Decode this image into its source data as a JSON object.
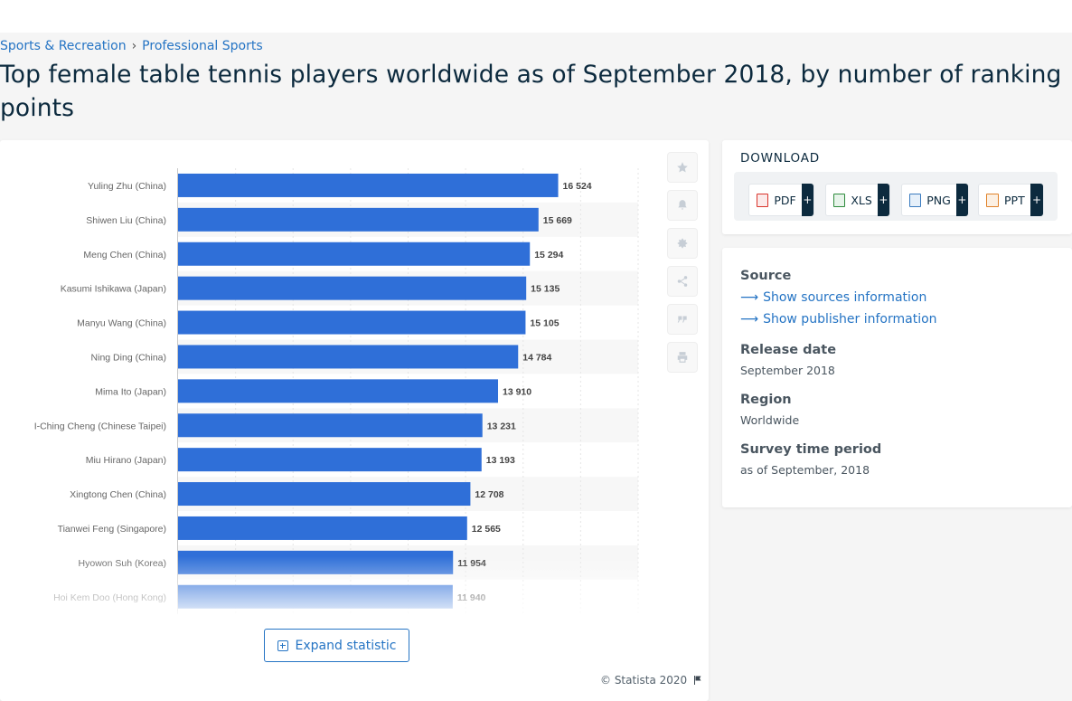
{
  "breadcrumb": [
    "Sports & Recreation",
    "Professional Sports"
  ],
  "title": "Top female table tennis players worldwide as of September 2018, by number of ranking points",
  "chart_data": {
    "type": "bar",
    "orientation": "horizontal",
    "categories": [
      "Yuling Zhu (China)",
      "Shiwen Liu (China)",
      "Meng Chen (China)",
      "Kasumi Ishikawa (Japan)",
      "Manyu Wang (China)",
      "Ning Ding (China)",
      "Mima Ito (Japan)",
      "I-Ching Cheng (Chinese Taipei)",
      "Miu Hirano (Japan)",
      "Xingtong Chen (China)",
      "Tianwei Feng (Singapore)",
      "Hyowon Suh (Korea)",
      "Hoi Kem Doo (Hong Kong)"
    ],
    "values": [
      16524,
      15669,
      15294,
      15135,
      15105,
      14784,
      13910,
      13231,
      13193,
      12708,
      12565,
      11954,
      11940
    ],
    "value_labels": [
      "16 524",
      "15 669",
      "15 294",
      "15 135",
      "15 105",
      "14 784",
      "13 910",
      "13 231",
      "13 193",
      "12 708",
      "12 565",
      "11 954",
      "11 940"
    ],
    "xlim": [
      0,
      20000
    ],
    "bar_color": "#2f6fd8",
    "grid": true
  },
  "actions": [
    "star-icon",
    "bell-icon",
    "gear-icon",
    "share-icon",
    "quote-icon",
    "print-icon"
  ],
  "expand_label": "Expand statistic",
  "copyright": "© Statista 2020",
  "download": {
    "title": "DOWNLOAD",
    "formats": [
      {
        "label": "PDF",
        "plus": "+",
        "color": "#d9342b"
      },
      {
        "label": "XLS",
        "plus": "+",
        "color": "#2e8b3c"
      },
      {
        "label": "PNG",
        "plus": "+",
        "color": "#3a7bbf"
      },
      {
        "label": "PPT",
        "plus": "+",
        "color": "#e0822a"
      }
    ]
  },
  "info": {
    "source_heading": "Source",
    "sources_link": "Show sources information",
    "publisher_link": "Show publisher information",
    "release_heading": "Release date",
    "release_value": "September 2018",
    "region_heading": "Region",
    "region_value": "Worldwide",
    "survey_heading": "Survey time period",
    "survey_value": "as of September, 2018"
  }
}
